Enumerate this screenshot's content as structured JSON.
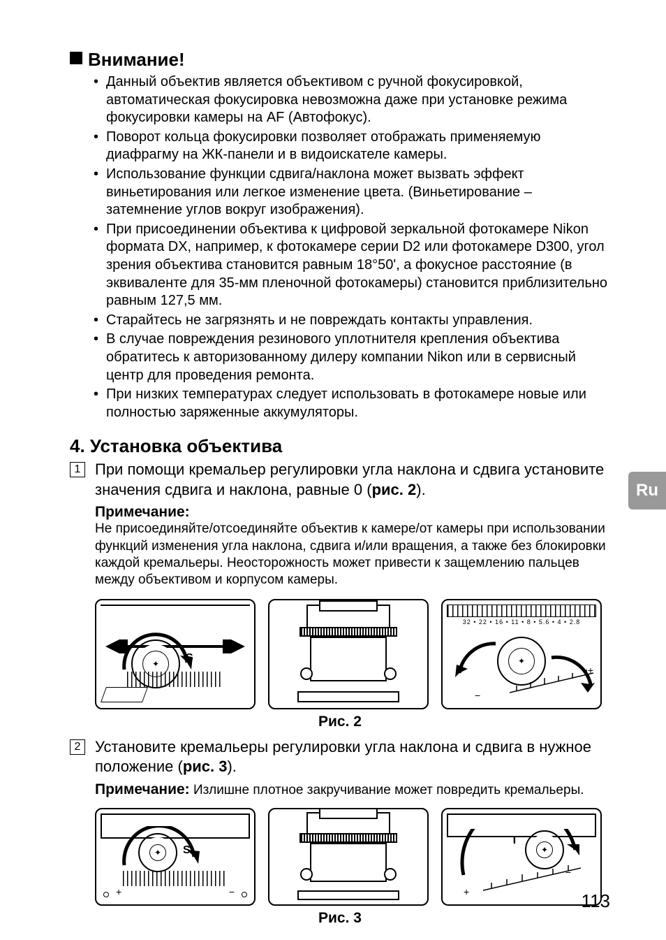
{
  "lang_tab": "Ru",
  "page_number": "113",
  "attention_heading": "Внимание!",
  "bullets": [
    "Данный объектив является объективом с ручной фокусировкой, автоматическая фокусировка невозможна даже при установке режима фокусировки камеры на AF (Автофокус).",
    "Поворот кольца фокусировки позволяет отображать применяемую диафрагму на ЖК-панели и в видоискателе камеры.",
    "Использование функции сдвига/наклона может вызвать эффект виньетирования или легкое изменение цвета. (Виньетирование – затемнение углов вокруг изображения).",
    "При присоединении объектива к цифровой зеркальной фотокамере Nikon формата DX, например, к фотокамере серии D2 или фотокамере D300, угол зрения объектива становится равным 18°50', а фокусное расстояние (в эквиваленте для 35-мм пленочной фотокамеры) становится приблизительно равным 127,5 мм.",
    "Старайтесь не загрязнять и не повреждать контакты управления.",
    "В случае повреждения резинового уплотнителя крепления объектива обратитесь к авторизованному дилеру компании Nikon или в сервисный центр для проведения ремонта.",
    "При низких температурах следует использовать в фотокамере новые или полностью заряженные аккумуляторы."
  ],
  "bullet_small_flags": [
    false,
    false,
    true,
    true,
    false,
    true,
    false
  ],
  "section4_heading": "4. Установка объектива",
  "step1_num": "1",
  "step1_text_a": "При помощи кремальер регулировки угла наклона и сдвига установите значения сдвига и наклона, равные 0 (",
  "step1_text_b": "рис. 2",
  "step1_text_c": ").",
  "note_label": "Примечание:",
  "note1_body": "Не присоединяйте/отсоединяйте объектив к камере/от камеры при использовании функций изменения угла наклона, сдвига и/или вращения, а также без блокировки каждой кремальеры. Неосторожность может привести к защемлению пальцев между объективом и корпусом камеры.",
  "fig2_caption": "Рис. 2",
  "aperture_values": "32 • 22 • 16 • 11 •  8 • 5.6 • 4 •  2.8",
  "step2_num": "2",
  "step2_text_a": "Установите кремальеры регулировки угла наклона и сдвига в нужное положение (",
  "step2_text_b": "рис. 3",
  "step2_text_c": ").",
  "note2_label": "Примечание:",
  "note2_inline": "  Излишне плотное закручивание может повредить кремальеры.",
  "fig3_caption": "Рис. 3",
  "panel_letter_s": "S",
  "panel_letter_t": "T",
  "colors": {
    "tab_bg": "#999999",
    "tab_fg": "#ffffff",
    "text": "#000000"
  }
}
